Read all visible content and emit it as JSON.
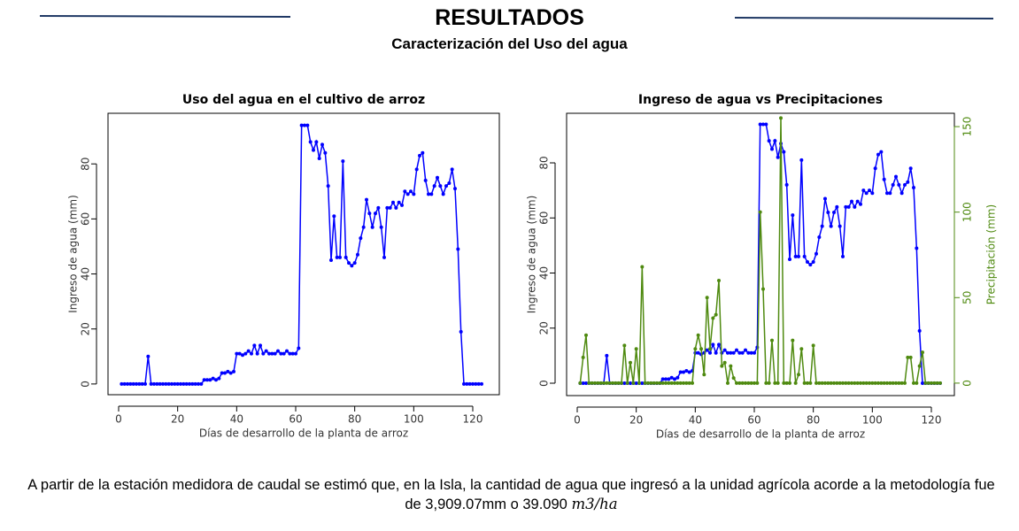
{
  "header": {
    "title": "RESULTADOS",
    "subtitle": "Caracterización del Uso del agua"
  },
  "chart_data": [
    {
      "type": "line",
      "title": "Uso del agua en el cultivo de arroz",
      "xlabel": "Días de desarrollo de la planta de arroz",
      "ylabel": "Ingreso de agua (mm)",
      "x": [
        1,
        2,
        3,
        4,
        5,
        6,
        7,
        8,
        9,
        10,
        11,
        12,
        13,
        14,
        15,
        16,
        17,
        18,
        19,
        20,
        21,
        22,
        23,
        24,
        25,
        26,
        27,
        28,
        29,
        30,
        31,
        32,
        33,
        34,
        35,
        36,
        37,
        38,
        39,
        40,
        41,
        42,
        43,
        44,
        45,
        46,
        47,
        48,
        49,
        50,
        51,
        52,
        53,
        54,
        55,
        56,
        57,
        58,
        59,
        60,
        61,
        62,
        63,
        64,
        65,
        66,
        67,
        68,
        69,
        70,
        71,
        72,
        73,
        74,
        75,
        76,
        77,
        78,
        79,
        80,
        81,
        82,
        83,
        84,
        85,
        86,
        87,
        88,
        89,
        90,
        91,
        92,
        93,
        94,
        95,
        96,
        97,
        98,
        99,
        100,
        101,
        102,
        103,
        104,
        105,
        106,
        107,
        108,
        109,
        110,
        111,
        112,
        113,
        114,
        115,
        116,
        117,
        118,
        119,
        120,
        121,
        122,
        123
      ],
      "series": [
        {
          "name": "Ingreso de agua",
          "color": "#0000ff",
          "values": [
            0,
            0,
            0,
            0,
            0,
            0,
            0,
            0,
            0,
            10,
            0,
            0,
            0,
            0,
            0,
            0,
            0,
            0,
            0,
            0,
            0,
            0,
            0,
            0,
            0,
            0,
            0,
            0,
            1.5,
            1.5,
            1.5,
            2,
            1.5,
            2,
            4,
            4,
            4.5,
            4,
            4.5,
            11,
            11,
            10.5,
            11,
            12,
            11,
            14,
            11,
            14,
            11,
            12,
            11,
            11,
            11,
            12,
            11,
            11,
            12,
            11,
            11,
            11,
            13,
            94,
            94,
            94,
            88,
            85,
            88,
            82,
            87,
            84,
            72,
            45,
            61,
            46,
            46,
            81,
            46,
            44,
            43,
            44,
            47,
            53,
            57,
            67,
            62,
            57,
            62,
            64,
            57,
            46,
            64,
            64,
            66,
            64,
            66,
            65,
            70,
            69,
            70,
            69,
            78,
            83,
            84,
            74,
            69,
            69,
            72,
            75,
            72,
            69,
            72,
            73,
            78,
            71,
            49,
            19,
            0,
            0,
            0,
            0,
            0,
            0,
            0
          ]
        }
      ],
      "xlim": [
        -3.6,
        129
      ],
      "ylim": [
        -3.9,
        98.4
      ],
      "xticks": [
        0,
        20,
        40,
        60,
        80,
        100,
        120
      ],
      "yticks": [
        0,
        20,
        40,
        60,
        80
      ]
    },
    {
      "type": "line",
      "title": "Ingreso de agua vs Precipitaciones",
      "xlabel": "Días de desarrollo de la planta de arroz",
      "ylabel": "Ingreso de agua (mm)",
      "y2label": "Precipitación (mm)",
      "x": [
        1,
        2,
        3,
        4,
        5,
        6,
        7,
        8,
        9,
        10,
        11,
        12,
        13,
        14,
        15,
        16,
        17,
        18,
        19,
        20,
        21,
        22,
        23,
        24,
        25,
        26,
        27,
        28,
        29,
        30,
        31,
        32,
        33,
        34,
        35,
        36,
        37,
        38,
        39,
        40,
        41,
        42,
        43,
        44,
        45,
        46,
        47,
        48,
        49,
        50,
        51,
        52,
        53,
        54,
        55,
        56,
        57,
        58,
        59,
        60,
        61,
        62,
        63,
        64,
        65,
        66,
        67,
        68,
        69,
        70,
        71,
        72,
        73,
        74,
        75,
        76,
        77,
        78,
        79,
        80,
        81,
        82,
        83,
        84,
        85,
        86,
        87,
        88,
        89,
        90,
        91,
        92,
        93,
        94,
        95,
        96,
        97,
        98,
        99,
        100,
        101,
        102,
        103,
        104,
        105,
        106,
        107,
        108,
        109,
        110,
        111,
        112,
        113,
        114,
        115,
        116,
        117,
        118,
        119,
        120,
        121,
        122,
        123
      ],
      "series": [
        {
          "name": "Ingreso de agua",
          "color": "#0000ff",
          "values": [
            0,
            0,
            0,
            0,
            0,
            0,
            0,
            0,
            0,
            10,
            0,
            0,
            0,
            0,
            0,
            0,
            0,
            0,
            0,
            0,
            0,
            0,
            0,
            0,
            0,
            0,
            0,
            0,
            1.5,
            1.5,
            1.5,
            2,
            1.5,
            2,
            4,
            4,
            4.5,
            4,
            4.5,
            11,
            11,
            10.5,
            11,
            12,
            11,
            14,
            11,
            14,
            11,
            12,
            11,
            11,
            11,
            12,
            11,
            11,
            12,
            11,
            11,
            11,
            13,
            94,
            94,
            94,
            88,
            85,
            88,
            82,
            87,
            84,
            72,
            45,
            61,
            46,
            46,
            81,
            46,
            44,
            43,
            44,
            47,
            53,
            57,
            67,
            62,
            57,
            62,
            64,
            57,
            46,
            64,
            64,
            66,
            64,
            66,
            65,
            70,
            69,
            70,
            69,
            78,
            83,
            84,
            74,
            69,
            69,
            72,
            75,
            72,
            69,
            72,
            73,
            78,
            71,
            49,
            19,
            0,
            0,
            0,
            0,
            0,
            0,
            0
          ]
        },
        {
          "name": "Precipitación",
          "color": "#4f8a10",
          "axis": "y2",
          "values": [
            0,
            15,
            28,
            0,
            0,
            0,
            0,
            0,
            0,
            0,
            0,
            0,
            0,
            0,
            0,
            22,
            0,
            12,
            0,
            20,
            0,
            68,
            0,
            0,
            0,
            0,
            0,
            0,
            0,
            0,
            0,
            0,
            0,
            0,
            0,
            0,
            0,
            0,
            0,
            20,
            28,
            20,
            5,
            50,
            20,
            38,
            40,
            60,
            10,
            12,
            0,
            10,
            3,
            0,
            0,
            0,
            0,
            0,
            0,
            0,
            0,
            100,
            55,
            0,
            0,
            25,
            0,
            0,
            155,
            0,
            0,
            0,
            25,
            0,
            5,
            20,
            0,
            0,
            0,
            22,
            0,
            0,
            0,
            0,
            0,
            0,
            0,
            0,
            0,
            0,
            0,
            0,
            0,
            0,
            0,
            0,
            0,
            0,
            0,
            0,
            0,
            0,
            0,
            0,
            0,
            0,
            0,
            0,
            0,
            0,
            0,
            15,
            15,
            0,
            0,
            10,
            18,
            0,
            0,
            0,
            0,
            0,
            0
          ]
        }
      ],
      "xlim": [
        -3.6,
        127.8
      ],
      "ylim": [
        -4.5,
        98
      ],
      "y2lim": [
        -7.3,
        157.8
      ],
      "xticks": [
        0,
        20,
        40,
        60,
        80,
        100,
        120
      ],
      "yticks": [
        0,
        20,
        40,
        60,
        80
      ],
      "y2ticks": [
        0,
        50,
        100,
        150
      ]
    }
  ],
  "footer": {
    "text": "A partir de la estación medidora de caudal se estimó que, en la Isla, la cantidad de agua que ingresó a la unidad agrícola acorde a la metodología fue de 3,909.07mm o 39.090",
    "unit": "m3/ha"
  }
}
